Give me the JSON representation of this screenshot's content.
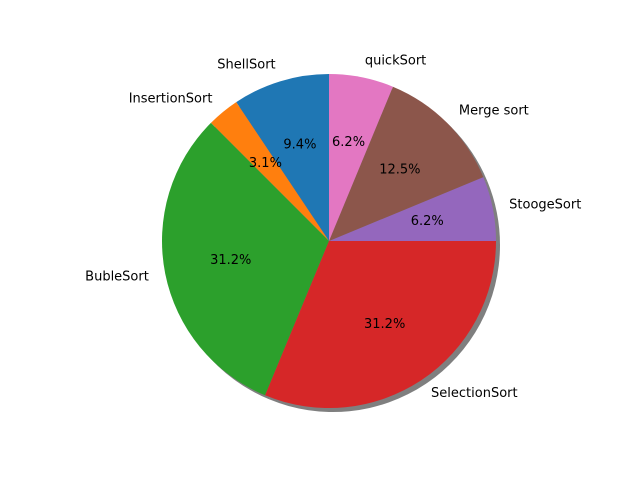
{
  "chart_data": {
    "type": "pie",
    "title": "",
    "slices": [
      {
        "label": "ShellSort",
        "value": 3,
        "percent_label": "9.4%",
        "color": "#1f77b4",
        "explode": 0
      },
      {
        "label": "InsertionSort",
        "value": 1,
        "percent_label": "3.1%",
        "color": "#ff7f0e",
        "explode": 0
      },
      {
        "label": "BubleSort",
        "value": 10,
        "percent_label": "31.2%",
        "color": "#2ca02c",
        "explode": 0
      },
      {
        "label": "SelectionSort",
        "value": 10,
        "percent_label": "31.2%",
        "color": "#d62728",
        "explode": 0
      },
      {
        "label": "StoogeSort",
        "value": 2,
        "percent_label": "6.2%",
        "color": "#9467bd",
        "explode": 0
      },
      {
        "label": "Merge sort",
        "value": 4,
        "percent_label": "12.5%",
        "color": "#8c564b",
        "explode": 0
      },
      {
        "label": "quickSort",
        "value": 2,
        "percent_label": "6.2%",
        "color": "#e377c2",
        "explode": 0
      }
    ],
    "start_angle_deg": 90,
    "direction": "counterclockwise",
    "shadow": true,
    "legend": "none",
    "grid": false
  }
}
